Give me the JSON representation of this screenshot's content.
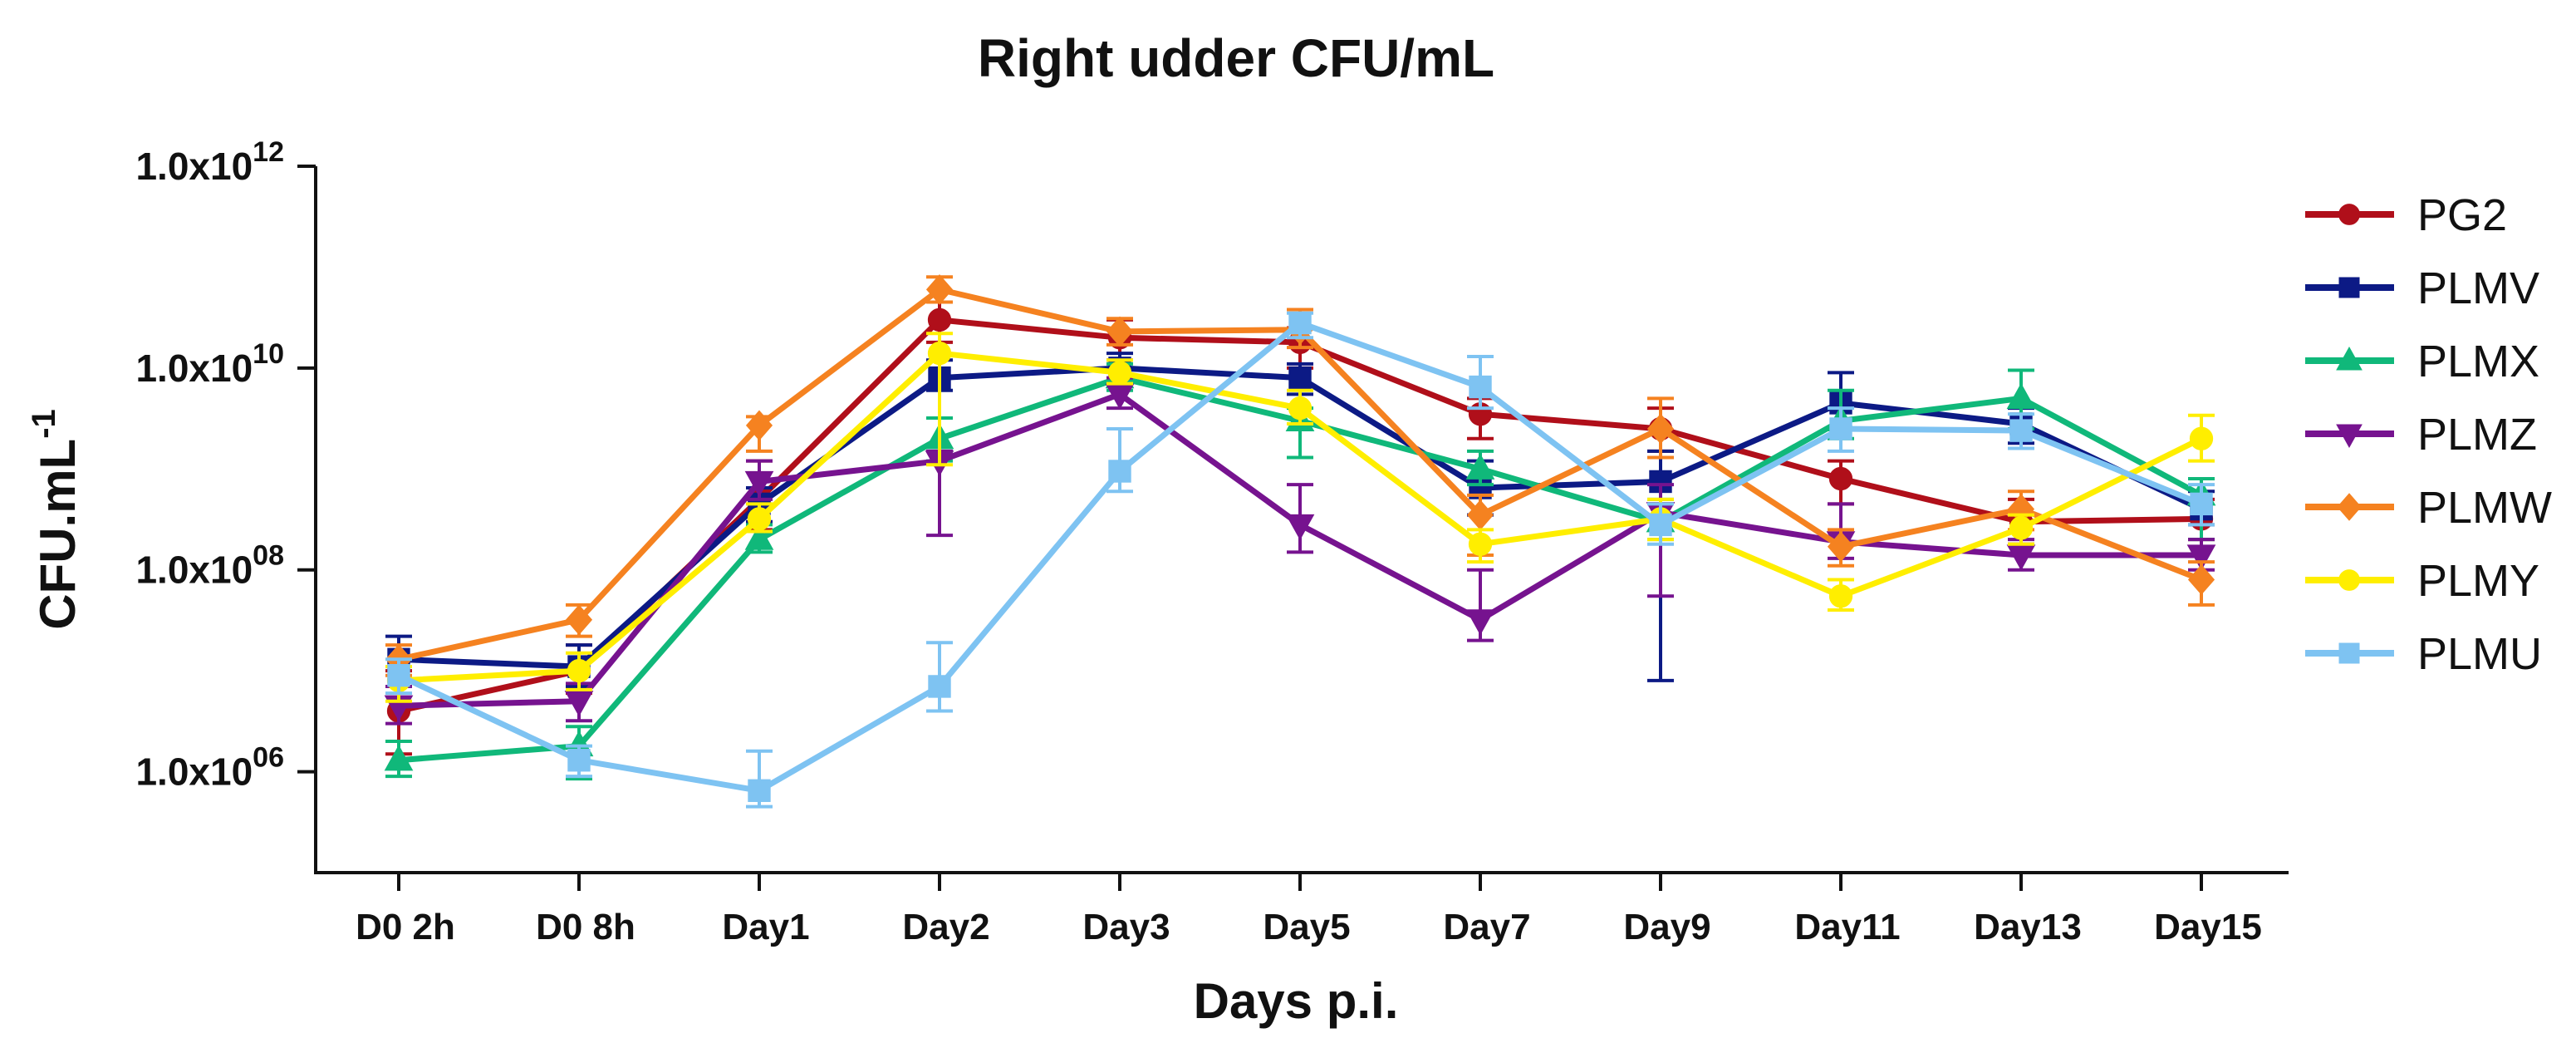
{
  "chart_data": {
    "type": "line",
    "title": "Right udder CFU/mL",
    "xlabel": "Days p.i.",
    "ylabel": "CFU.mL",
    "ylabel_sup": "-1",
    "y_scale": "log10",
    "ylim": [
      100000,
      1000000000000
    ],
    "yticks": [
      {
        "value": 1000000,
        "mantissa": "1.0x10",
        "exponent": "06"
      },
      {
        "value": 100000000,
        "mantissa": "1.0x10",
        "exponent": "08"
      },
      {
        "value": 10000000000,
        "mantissa": "1.0x10",
        "exponent": "10"
      },
      {
        "value": 1000000000000,
        "mantissa": "1.0x10",
        "exponent": "12"
      }
    ],
    "categories": [
      "D0 2h",
      "D0 8h",
      "Day1",
      "Day2",
      "Day3",
      "Day5",
      "Day7",
      "Day9",
      "Day11",
      "Day13",
      "Day15"
    ],
    "legend_position": "right",
    "grid": false,
    "series": [
      {
        "name": "PG2",
        "color": "#b00f1a",
        "marker": "circle",
        "values": [
          4000000.0,
          10000000.0,
          500000000.0,
          30000000000.0,
          20000000000.0,
          18000000000.0,
          3500000000.0,
          2500000000.0,
          800000000.0,
          300000000.0,
          320000000.0
        ],
        "err_upper": [
          10000000.0,
          18000000.0,
          1200000000.0,
          45000000000.0,
          30000000000.0,
          25000000000.0,
          5000000000.0,
          4000000000.0,
          1200000000.0,
          500000000.0,
          500000000.0
        ],
        "err_lower": [
          1500000.0,
          6000000.0,
          250000000.0,
          18000000000.0,
          12000000000.0,
          10000000000.0,
          2000000000.0,
          1500000000.0,
          450000000.0,
          180000000.0,
          200000000.0
        ]
      },
      {
        "name": "PLMV",
        "color": "#0c1a85",
        "marker": "square",
        "values": [
          13000000.0,
          11000000.0,
          450000000.0,
          8000000000.0,
          10000000000.0,
          8000000000.0,
          650000000.0,
          750000000.0,
          4500000000.0,
          2800000000.0,
          400000000.0
        ],
        "err_upper": [
          22000000.0,
          18000000.0,
          650000000.0,
          12000000000.0,
          14000000000.0,
          11000000000.0,
          1200000000.0,
          1500000000.0,
          9000000000.0,
          4000000000.0,
          600000000.0
        ],
        "err_lower": [
          7000000.0,
          7000000.0,
          300000000.0,
          6000000000.0,
          7000000000.0,
          5500000000.0,
          350000000.0,
          8000000.0,
          2500000000.0,
          1800000000.0,
          280000000.0
        ]
      },
      {
        "name": "PLMX",
        "color": "#10b87a",
        "marker": "triangle-up",
        "values": [
          1300000.0,
          1800000.0,
          200000000.0,
          2000000000.0,
          8000000000.0,
          3000000000.0,
          1000000000.0,
          300000000.0,
          3000000000.0,
          5000000000.0,
          550000000.0
        ],
        "err_upper": [
          2000000.0,
          2800000.0,
          280000000.0,
          3200000000.0,
          11000000000.0,
          4000000000.0,
          1500000000.0,
          500000000.0,
          6000000000.0,
          9500000000.0,
          800000000.0
        ],
        "err_lower": [
          900000.0,
          850000.0,
          150000000.0,
          1200000000.0,
          6000000000.0,
          1300000000.0,
          700000000.0,
          200000000.0,
          2000000000.0,
          2500000000.0,
          200000000.0
        ]
      },
      {
        "name": "PLMZ",
        "color": "#76138f",
        "marker": "triangle-down",
        "values": [
          4500000.0,
          5000000.0,
          750000000.0,
          1200000000.0,
          5500000000.0,
          280000000.0,
          32000000.0,
          370000000.0,
          190000000.0,
          140000000.0,
          140000000.0
        ],
        "err_upper": [
          7000000.0,
          7500000.0,
          1200000000.0,
          1500000000.0,
          8000000000.0,
          700000000.0,
          100000000.0,
          700000000.0,
          450000000.0,
          200000000.0,
          200000000.0
        ],
        "err_lower": [
          3000000.0,
          3200000.0,
          500000000.0,
          220000000.0,
          4000000000.0,
          150000000.0,
          20000000.0,
          55000000.0,
          130000000.0,
          100000000.0,
          100000000.0
        ]
      },
      {
        "name": "PLMW",
        "color": "#f58220",
        "marker": "diamond",
        "values": [
          13000000.0,
          32000000.0,
          2700000000.0,
          60000000000.0,
          23000000000.0,
          24000000000.0,
          350000000.0,
          2500000000.0,
          170000000.0,
          400000000.0,
          80000000.0
        ],
        "err_upper": [
          18000000.0,
          45000000.0,
          3300000000.0,
          80000000000.0,
          31000000000.0,
          38000000000.0,
          550000000.0,
          5000000000.0,
          250000000.0,
          600000000.0,
          120000000.0
        ],
        "err_lower": [
          9000000.0,
          22000000.0,
          1500000000.0,
          45000000000.0,
          17000000000.0,
          16000000000.0,
          140000000.0,
          1300000000.0,
          110000000.0,
          250000000.0,
          45000000.0
        ]
      },
      {
        "name": "PLMY",
        "color": "#ffee00",
        "marker": "circle",
        "values": [
          8000000.0,
          10000000.0,
          320000000.0,
          14000000000.0,
          9000000000.0,
          4000000000.0,
          180000000.0,
          320000000.0,
          55000000.0,
          260000000.0,
          2000000000.0
        ],
        "err_upper": [
          11000000.0,
          15000000.0,
          450000000.0,
          22000000000.0,
          12000000000.0,
          6000000000.0,
          250000000.0,
          500000000.0,
          80000000.0,
          350000000.0,
          3400000000.0
        ],
        "err_lower": [
          5000000.0,
          6500000.0,
          240000000.0,
          1100000000.0,
          7000000000.0,
          2800000000.0,
          120000000.0,
          200000000.0,
          40000000.0,
          180000000.0,
          1200000000.0
        ]
      },
      {
        "name": "PLMU",
        "color": "#7ec3f2",
        "marker": "square",
        "values": [
          9000000.0,
          1300000.0,
          650000.0,
          7000000.0,
          950000000.0,
          28000000000.0,
          6500000000.0,
          280000000.0,
          2500000000.0,
          2400000000.0,
          450000000.0
        ],
        "err_upper": [
          13000000.0,
          1800000.0,
          1600000.0,
          19000000.0,
          2500000000.0,
          35000000000.0,
          13000000000.0,
          450000000.0,
          4000000000.0,
          3500000000.0,
          700000000.0
        ],
        "err_lower": [
          6000000.0,
          900000.0,
          450000.0,
          4000000.0,
          600000000.0,
          20000000000.0,
          4000000000.0,
          180000000.0,
          1500000000.0,
          1600000000.0,
          280000000.0
        ]
      }
    ]
  }
}
